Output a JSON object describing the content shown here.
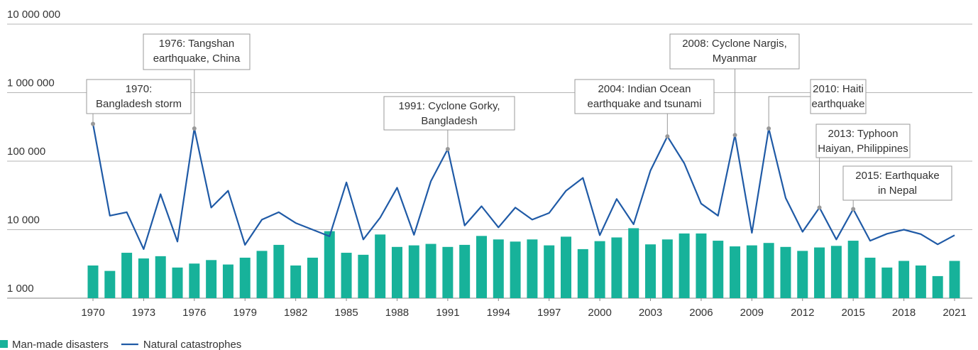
{
  "chart_data": {
    "type": "bar-line",
    "log_scale": true,
    "grid": true,
    "legend": "bottom-left",
    "x": [
      1970,
      1971,
      1972,
      1973,
      1974,
      1975,
      1976,
      1977,
      1978,
      1979,
      1980,
      1981,
      1982,
      1983,
      1984,
      1985,
      1986,
      1987,
      1988,
      1989,
      1990,
      1991,
      1992,
      1993,
      1994,
      1995,
      1996,
      1997,
      1998,
      1999,
      2000,
      2001,
      2002,
      2003,
      2004,
      2005,
      2006,
      2007,
      2008,
      2009,
      2010,
      2011,
      2012,
      2013,
      2014,
      2015,
      2016,
      2017,
      2018,
      2019,
      2020,
      2021
    ],
    "xlim": [
      1970,
      2021
    ],
    "xticks": [
      1970,
      1973,
      1976,
      1979,
      1982,
      1985,
      1988,
      1991,
      1994,
      1997,
      2000,
      2003,
      2006,
      2009,
      2012,
      2015,
      2018,
      2021
    ],
    "ylim": [
      1000,
      10000000
    ],
    "yticks": [
      {
        "value": 1000,
        "label": "1 000"
      },
      {
        "value": 10000,
        "label": "10 000"
      },
      {
        "value": 100000,
        "label": "100 000"
      },
      {
        "value": 1000000,
        "label": "1 000 000"
      },
      {
        "value": 10000000,
        "label": "10 000 000"
      }
    ],
    "series": [
      {
        "name": "Man-made disasters",
        "type": "bar",
        "color": "#17b29a",
        "values": [
          3000,
          2500,
          4600,
          3800,
          4100,
          2800,
          3200,
          3600,
          3100,
          3900,
          4900,
          6000,
          3000,
          3900,
          9500,
          4600,
          4300,
          8500,
          5600,
          5900,
          6200,
          5600,
          6000,
          8100,
          7200,
          6700,
          7200,
          5900,
          7900,
          5200,
          6800,
          7700,
          10500,
          6100,
          7200,
          8800,
          8800,
          6900,
          5700,
          5900,
          6400,
          5600,
          4900,
          5500,
          5800,
          6900,
          3900,
          2800,
          3500,
          3000,
          2100,
          3500
        ]
      },
      {
        "name": "Natural catastrophes",
        "type": "line",
        "color": "#1f5aa6",
        "values": [
          350000,
          16000,
          18000,
          5200,
          33000,
          6700,
          300000,
          21000,
          37000,
          6000,
          14000,
          18000,
          12500,
          10000,
          8000,
          49000,
          7200,
          15000,
          41000,
          8400,
          51000,
          150000,
          11500,
          22000,
          10800,
          21000,
          14000,
          17500,
          37000,
          57000,
          8300,
          28000,
          12000,
          73000,
          230000,
          93000,
          24000,
          16000,
          240000,
          9000,
          300000,
          29000,
          9300,
          21000,
          7200,
          20000,
          6900,
          8700,
          10000,
          8600,
          6100,
          8300
        ]
      }
    ],
    "annotations": [
      {
        "lines": [
          "1970:",
          "Bangladesh storm"
        ]
      },
      {
        "lines": [
          "1976: Tangshan",
          "earthquake, China"
        ]
      },
      {
        "lines": [
          "1991: Cyclone Gorky,",
          "Bangladesh"
        ]
      },
      {
        "lines": [
          "2004: Indian Ocean",
          "earthquake and tsunami"
        ]
      },
      {
        "lines": [
          "2008: Cyclone Nargis,",
          "Myanmar"
        ]
      },
      {
        "lines": [
          "2010: Haiti",
          "earthquake"
        ]
      },
      {
        "lines": [
          "2013: Typhoon",
          "Haiyan, Philippines"
        ]
      },
      {
        "lines": [
          "2015: Earthquake",
          "in Nepal"
        ]
      }
    ]
  }
}
